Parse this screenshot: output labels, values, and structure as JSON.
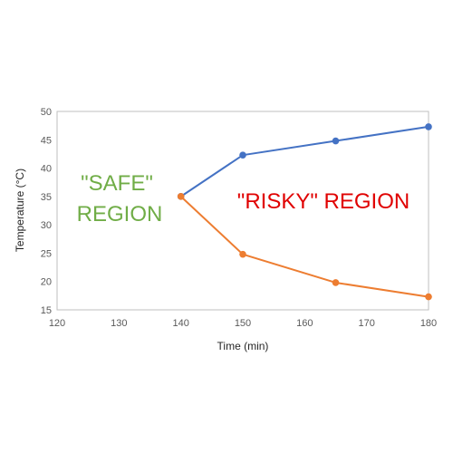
{
  "chart_data": {
    "type": "line",
    "title": "",
    "xlabel": "Time (min)",
    "ylabel": "Temperature (°C)",
    "xlim": [
      120,
      180
    ],
    "ylim": [
      15,
      50
    ],
    "xticks": [
      120,
      130,
      140,
      150,
      160,
      170,
      180
    ],
    "yticks": [
      15,
      20,
      25,
      30,
      35,
      40,
      45,
      50
    ],
    "grid": false,
    "legend": "none",
    "series": [
      {
        "color": "#4472C4",
        "points": [
          {
            "x": 140,
            "y": 35.0
          },
          {
            "x": 150,
            "y": 42.3
          },
          {
            "x": 165,
            "y": 44.8
          },
          {
            "x": 180,
            "y": 47.3
          }
        ]
      },
      {
        "color": "#ED7D31",
        "points": [
          {
            "x": 140,
            "y": 35.0
          },
          {
            "x": 150,
            "y": 24.8
          },
          {
            "x": 165,
            "y": 19.8
          },
          {
            "x": 180,
            "y": 17.3
          }
        ]
      }
    ],
    "annotations": [
      {
        "id": "safe",
        "lines": [
          "\"SAFE\"",
          "REGION"
        ],
        "color": "#70AD47"
      },
      {
        "id": "risky",
        "lines": [
          "\"RISKY\" REGION"
        ],
        "color": "#E00000"
      }
    ]
  }
}
